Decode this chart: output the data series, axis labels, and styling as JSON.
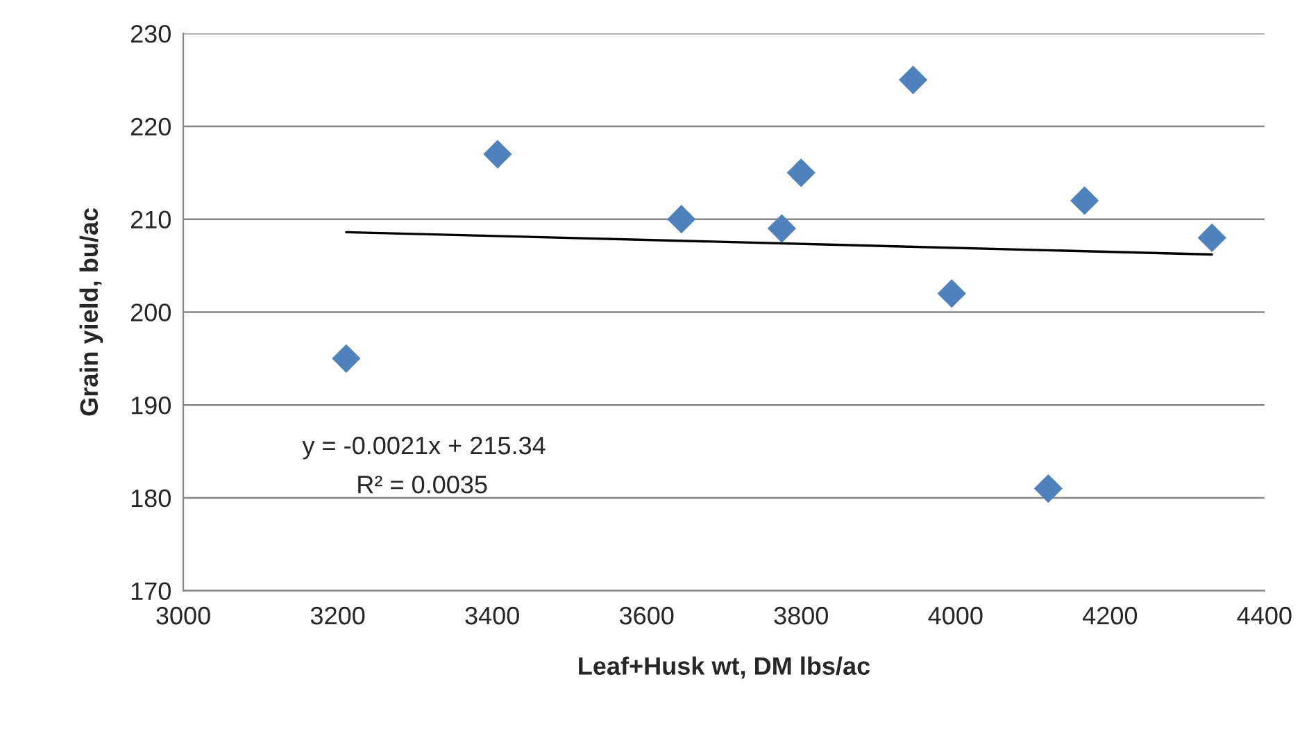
{
  "chart_data": {
    "type": "scatter",
    "xlabel": "Leaf+Husk wt, DM lbs/ac",
    "ylabel": "Grain yield, bu/ac",
    "xlim": [
      3000,
      4400
    ],
    "xticks": [
      3000,
      3200,
      3400,
      3600,
      3800,
      4000,
      4200,
      4400
    ],
    "ylim": [
      170,
      230
    ],
    "yticks": [
      170,
      180,
      190,
      200,
      210,
      220,
      230
    ],
    "grid": "y",
    "series": [
      {
        "marker": "diamond",
        "color": "#4f81bd",
        "x": [
          3211,
          3407,
          3645,
          3775,
          3800,
          3945,
          3995,
          4120,
          4167,
          4332
        ],
        "values": [
          195,
          217,
          210,
          209,
          215,
          225,
          202,
          181,
          212,
          208
        ]
      },
      {
        "type": "line",
        "color": "#000000",
        "x": [
          3211,
          4332
        ],
        "values": [
          208.6,
          206.2
        ]
      }
    ],
    "annotations": [
      "y = -0.0021x + 215.34",
      "R² = 0.0035"
    ]
  }
}
